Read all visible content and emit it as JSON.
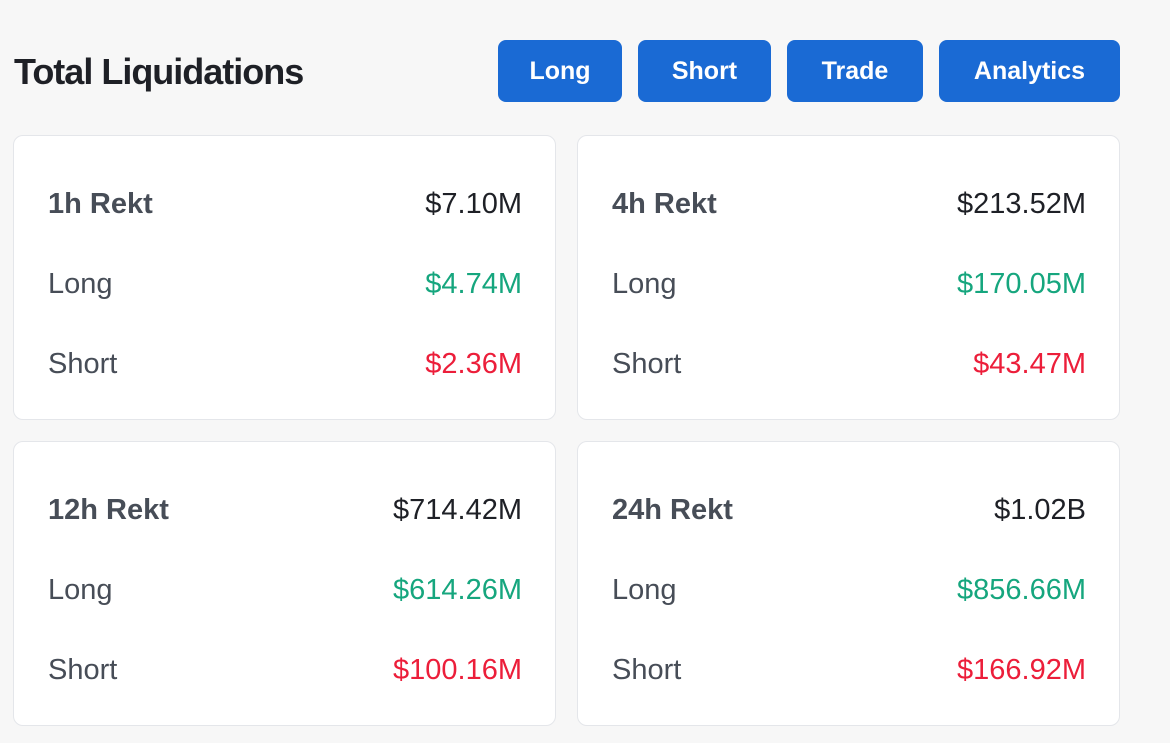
{
  "header": {
    "title": "Total Liquidations",
    "buttons": {
      "long": "Long",
      "short": "Short",
      "trade": "Trade",
      "analytics": "Analytics"
    }
  },
  "cards": [
    {
      "title": "1h Rekt",
      "total": "$7.10M",
      "long_label": "Long",
      "long_value": "$4.74M",
      "short_label": "Short",
      "short_value": "$2.36M"
    },
    {
      "title": "4h Rekt",
      "total": "$213.52M",
      "long_label": "Long",
      "long_value": "$170.05M",
      "short_label": "Short",
      "short_value": "$43.47M"
    },
    {
      "title": "12h Rekt",
      "total": "$714.42M",
      "long_label": "Long",
      "long_value": "$614.26M",
      "short_label": "Short",
      "short_value": "$100.16M"
    },
    {
      "title": "24h Rekt",
      "total": "$1.02B",
      "long_label": "Long",
      "long_value": "$856.66M",
      "short_label": "Short",
      "short_value": "$166.92M"
    }
  ],
  "colors": {
    "accent": "#1a6ad4",
    "long": "#16a67e",
    "short": "#ec1e3a"
  }
}
